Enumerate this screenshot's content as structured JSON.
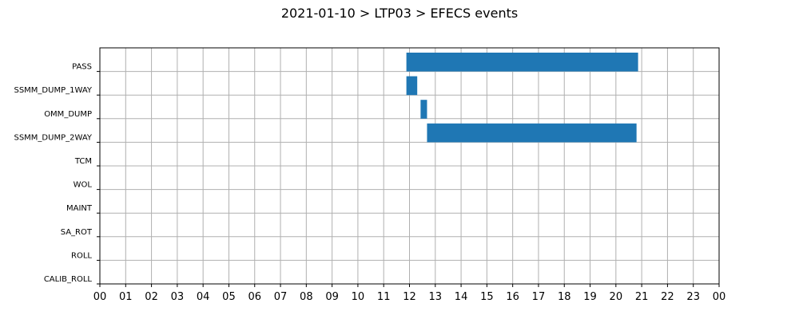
{
  "chart_data": {
    "type": "bar",
    "orientation": "horizontal",
    "title": "2021-01-10 > LTP03 > EFECS events",
    "categories": [
      "PASS",
      "SSMM_DUMP_1WAY",
      "OMM_DUMP",
      "SSMM_DUMP_2WAY",
      "TCM",
      "WOL",
      "MAINT",
      "SA_ROT",
      "ROLL",
      "CALIB_ROLL"
    ],
    "x_ticks": [
      "00",
      "01",
      "02",
      "03",
      "04",
      "05",
      "06",
      "07",
      "08",
      "09",
      "10",
      "11",
      "12",
      "13",
      "14",
      "15",
      "16",
      "17",
      "18",
      "19",
      "20",
      "21",
      "22",
      "23",
      "00"
    ],
    "xlim": [
      0,
      24
    ],
    "x_unit": "hours",
    "grid": true,
    "bar_color": "#1f77b4",
    "events": [
      {
        "category": "PASS",
        "start": 11.88,
        "end": 20.86
      },
      {
        "category": "SSMM_DUMP_1WAY",
        "start": 11.88,
        "end": 12.3
      },
      {
        "category": "OMM_DUMP",
        "start": 12.43,
        "end": 12.68
      },
      {
        "category": "SSMM_DUMP_2WAY",
        "start": 12.68,
        "end": 20.8
      }
    ]
  }
}
